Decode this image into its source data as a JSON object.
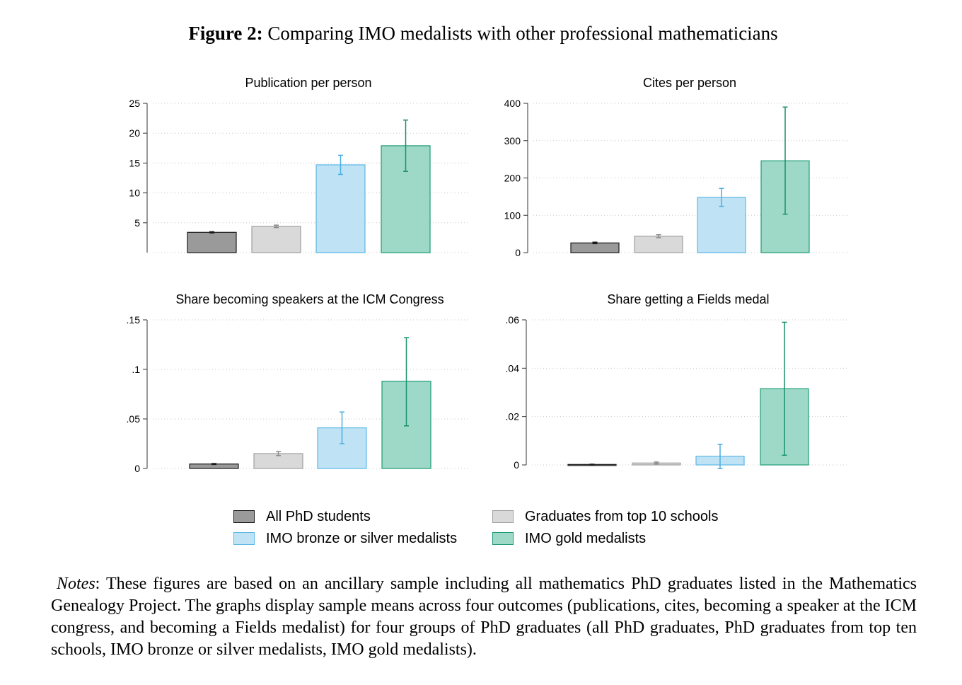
{
  "figure": {
    "label": "Figure 2:",
    "title": "Comparing IMO medalists with other professional mathematicians"
  },
  "groups": [
    {
      "name": "All PhD students",
      "fill": "#9a9a9a",
      "stroke": "#1a1a1a",
      "err": "#1a1a1a"
    },
    {
      "name": "Graduates from top 10 schools",
      "fill": "#d9d9d9",
      "stroke": "#a0a0a0",
      "err": "#8a8a8a"
    },
    {
      "name": "IMO bronze or silver medalists",
      "fill": "#bfe2f5",
      "stroke": "#5cb8e4",
      "err": "#4aaedf"
    },
    {
      "name": "IMO gold medalists",
      "fill": "#9dd9c6",
      "stroke": "#1e9b76",
      "err": "#17916d"
    }
  ],
  "chart_data": [
    {
      "type": "bar",
      "title": "Publication per person",
      "categories": [
        "All PhD students",
        "Graduates from top 10 schools",
        "IMO bronze or silver medalists",
        "IMO gold medalists"
      ],
      "values": [
        3.4,
        4.4,
        14.7,
        17.9
      ],
      "err_low": [
        3.3,
        4.2,
        13.1,
        13.6
      ],
      "err_high": [
        3.5,
        4.6,
        16.3,
        22.2
      ],
      "ylim": [
        0,
        25
      ],
      "yticks": [
        5,
        10,
        15,
        20,
        25
      ],
      "ytick_labels": [
        "5",
        "10",
        "15",
        "20",
        "25"
      ]
    },
    {
      "type": "bar",
      "title": "Cites per person",
      "categories": [
        "All PhD students",
        "Graduates from top 10 schools",
        "IMO bronze or silver medalists",
        "IMO gold medalists"
      ],
      "values": [
        26,
        44,
        148,
        246
      ],
      "err_low": [
        24,
        40,
        124,
        103
      ],
      "err_high": [
        28,
        48,
        172,
        390
      ],
      "ylim": [
        0,
        400
      ],
      "yticks": [
        0,
        100,
        200,
        300,
        400
      ],
      "ytick_labels": [
        "0",
        "100",
        "200",
        "300",
        "400"
      ]
    },
    {
      "type": "bar",
      "title": "Share becoming speakers at the ICM Congress",
      "categories": [
        "All PhD students",
        "Graduates from top 10 schools",
        "IMO bronze or silver medalists",
        "IMO gold medalists"
      ],
      "values": [
        0.0045,
        0.015,
        0.041,
        0.088
      ],
      "err_low": [
        0.004,
        0.013,
        0.025,
        0.043
      ],
      "err_high": [
        0.005,
        0.017,
        0.057,
        0.132
      ],
      "ylim": [
        0,
        0.15
      ],
      "yticks": [
        0,
        0.05,
        0.1,
        0.15
      ],
      "ytick_labels": [
        "0",
        ".05",
        ".1",
        ".15"
      ]
    },
    {
      "type": "bar",
      "title": "Share getting a Fields medal",
      "categories": [
        "All PhD students",
        "Graduates from top 10 schools",
        "IMO bronze or silver medalists",
        "IMO gold medalists"
      ],
      "values": [
        0.0002,
        0.0008,
        0.0036,
        0.0315
      ],
      "err_low": [
        0.0001,
        0.0004,
        -0.0015,
        0.004
      ],
      "err_high": [
        0.0003,
        0.0012,
        0.0085,
        0.059
      ],
      "ylim": [
        0,
        0.06
      ],
      "yticks": [
        0,
        0.02,
        0.04,
        0.06
      ],
      "ytick_labels": [
        "0",
        ".02",
        ".04",
        ".06"
      ]
    }
  ],
  "notes": {
    "label": "Notes",
    "text": ": These figures are based on an ancillary sample including all mathematics PhD graduates listed in the Mathematics Genealogy Project. The graphs display sample means across four outcomes (publications, cites, becoming a speaker at the ICM congress, and becoming a Fields medalist) for four groups of PhD graduates (all PhD graduates, PhD graduates from top ten schools, IMO bronze or silver medalists, IMO gold medalists)."
  }
}
